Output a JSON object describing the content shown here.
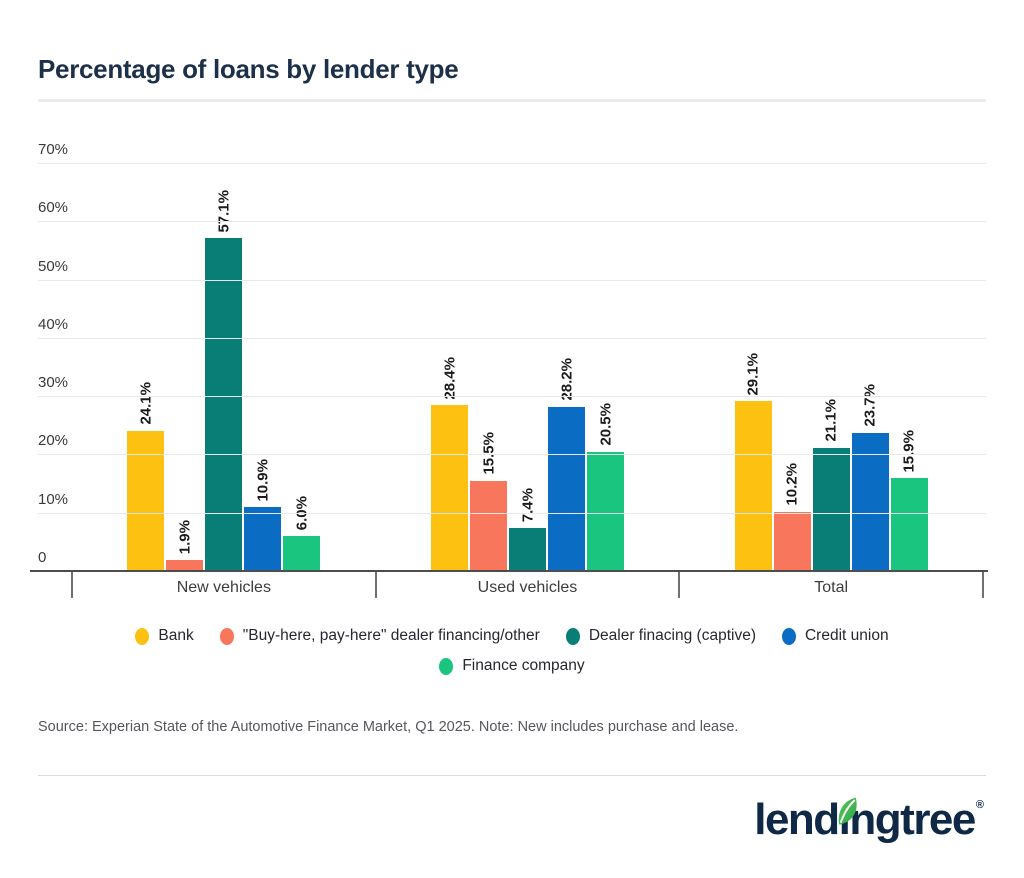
{
  "title": "Percentage of loans by lender type",
  "source_note": "Source: Experian State of the Automotive Finance Market, Q1 2025. Note: New includes purchase and lease.",
  "logo": {
    "text": "lendingtree",
    "registered": "®",
    "text_color": "#0F2846",
    "leaf_color_light": "#5BC355",
    "leaf_color_dark": "#2EA84E"
  },
  "chart_data": {
    "type": "bar",
    "title": "Percentage of loans by lender type",
    "categories": [
      "New vehicles",
      "Used vehicles",
      "Total"
    ],
    "series": [
      {
        "name": "Bank",
        "color": "#FDC112",
        "values": [
          24.1,
          28.4,
          29.1
        ],
        "labels": [
          "24.1%",
          "28.4%",
          "29.1%"
        ]
      },
      {
        "name": "\"Buy-here, pay-here\" dealer financing/other",
        "color": "#F8765C",
        "values": [
          1.9,
          15.5,
          10.2
        ],
        "labels": [
          "1.9%",
          "15.5%",
          "10.2%"
        ]
      },
      {
        "name": "Dealer finacing (captive)",
        "color": "#087E77",
        "values": [
          57.1,
          7.4,
          21.1
        ],
        "labels": [
          "57.1%",
          "7.4%",
          "21.1%"
        ]
      },
      {
        "name": "Credit union",
        "color": "#0B6CC3",
        "values": [
          10.9,
          28.2,
          23.7
        ],
        "labels": [
          "10.9%",
          "28.2%",
          "23.7%"
        ]
      },
      {
        "name": "Finance company",
        "color": "#19C57F",
        "values": [
          6.0,
          20.5,
          15.9
        ],
        "labels": [
          "6.0%",
          "20.5%",
          "15.9%"
        ]
      }
    ],
    "ylim": [
      0,
      70
    ],
    "y_ticks": [
      {
        "label": "70%",
        "value": 70
      },
      {
        "label": "60%",
        "value": 60
      },
      {
        "label": "50%",
        "value": 50
      },
      {
        "label": "40%",
        "value": 40
      },
      {
        "label": "30%",
        "value": 30
      },
      {
        "label": "20%",
        "value": 20
      },
      {
        "label": "10%",
        "value": 10
      },
      {
        "label": "0",
        "value": 0
      }
    ],
    "grid": true,
    "value_labels_rotated": true,
    "legend_position": "bottom",
    "legend_rows": [
      4,
      1
    ]
  }
}
